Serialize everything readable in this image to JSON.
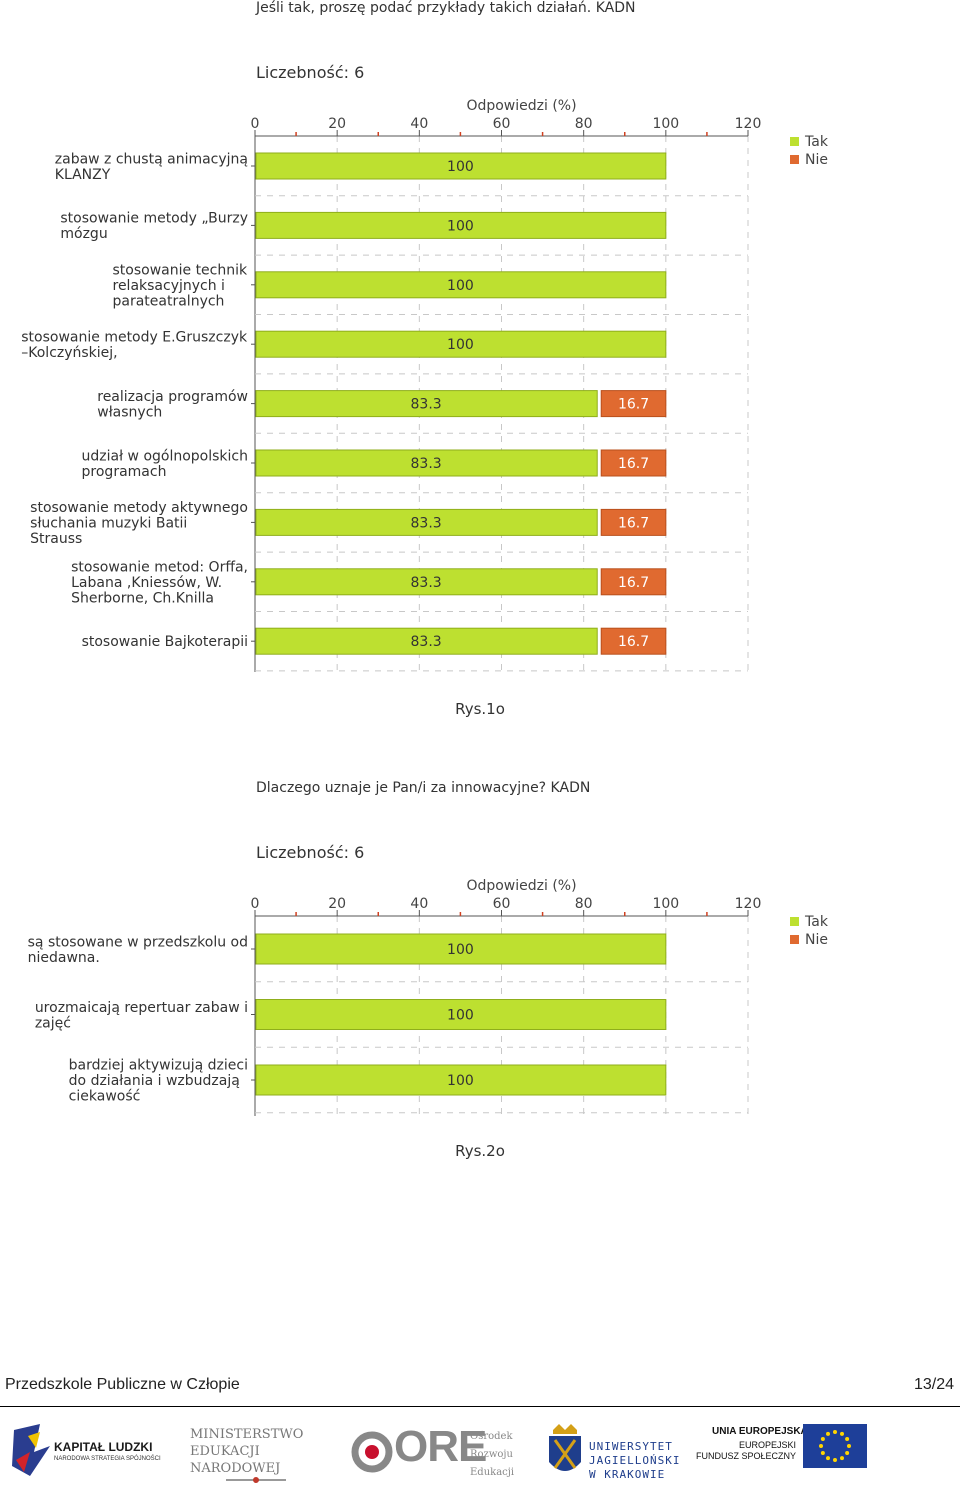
{
  "colors": {
    "tak": "#bde030",
    "tak_border": "#8fae1b",
    "nie": "#e06a30",
    "nie_border": "#b9501d",
    "grid": "#c8c8c8",
    "tick_red": "#d04020"
  },
  "chart_data": [
    {
      "type": "bar",
      "orientation": "horizontal",
      "stacked": true,
      "title": "Jeśli tak, proszę podać przykłady takich działań. KADN",
      "count_label": "Liczebność: 6",
      "xlabel": "Odpowiedzi (%)",
      "xlim": [
        0,
        120
      ],
      "xticks": [
        "0",
        "20",
        "40",
        "60",
        "80",
        "100",
        "120"
      ],
      "grid": true,
      "legend_position": "top-right",
      "categories": [
        [
          "zabaw z chustą animacyjną",
          "KLANZY"
        ],
        [
          "stosowanie metody „Burzy",
          "mózgu"
        ],
        [
          "stosowanie technik",
          "relaksacyjnych i",
          "parateatralnych"
        ],
        [
          "stosowanie metody E.Gruszczyk",
          "–Kolczyńskiej,"
        ],
        [
          "realizacja programów",
          "własnych"
        ],
        [
          "udział w ogólnopolskich",
          "programach"
        ],
        [
          "stosowanie metody aktywnego",
          "słuchania muzyki Batii",
          "Strauss"
        ],
        [
          "stosowanie metod: Orffa,",
          "Labana ,Kniessów, W.",
          "Sherborne, Ch.Knilla"
        ],
        [
          "stosowanie Bajkoterapii"
        ]
      ],
      "series": [
        {
          "name": "Tak",
          "values": [
            100,
            100,
            100,
            100,
            83.3,
            83.3,
            83.3,
            83.3,
            83.3
          ],
          "labels": [
            "100",
            "100",
            "100",
            "100",
            "83.3",
            "83.3",
            "83.3",
            "83.3",
            "83.3"
          ]
        },
        {
          "name": "Nie",
          "values": [
            0,
            0,
            0,
            0,
            16.7,
            16.7,
            16.7,
            16.7,
            16.7
          ],
          "labels": [
            "",
            "",
            "",
            "",
            "16.7",
            "16.7",
            "16.7",
            "16.7",
            "16.7"
          ]
        }
      ],
      "caption": "Rys.1o"
    },
    {
      "type": "bar",
      "orientation": "horizontal",
      "stacked": true,
      "title": "Dlaczego uznaje je Pan/i za innowacyjne? KADN",
      "count_label": "Liczebność: 6",
      "xlabel": "Odpowiedzi (%)",
      "xlim": [
        0,
        120
      ],
      "xticks": [
        "0",
        "20",
        "40",
        "60",
        "80",
        "100",
        "120"
      ],
      "grid": true,
      "legend_position": "top-right",
      "categories": [
        [
          "są stosowane w przedszkolu od",
          "niedawna."
        ],
        [
          "urozmaicają repertuar zabaw i",
          "zajęć"
        ],
        [
          "bardziej aktywizują dzieci",
          "do działania i wzbudzają",
          "ciekawość"
        ]
      ],
      "series": [
        {
          "name": "Tak",
          "values": [
            100,
            100,
            100
          ],
          "labels": [
            "100",
            "100",
            "100"
          ]
        },
        {
          "name": "Nie",
          "values": [
            0,
            0,
            0
          ],
          "labels": [
            "",
            "",
            ""
          ]
        }
      ],
      "caption": "Rys.2o"
    }
  ],
  "footer": {
    "school": "Przedszkole Publiczne w Człopie",
    "page": "13/24"
  },
  "logos": {
    "kapital": {
      "title": "KAPITAŁ LUDZKI",
      "subtitle": "NARODOWA STRATEGIA SPÓJNOŚCI"
    },
    "men": {
      "line1": "MINISTERSTWO",
      "line2": "EDUKACJI",
      "line3": "NARODOWEJ"
    },
    "ore": {
      "mark": "ORE",
      "line1": "Ośrodek",
      "line2": "Rozwoju",
      "line3": "Edukacji"
    },
    "uj": {
      "line1": "UNIWERSYTET",
      "line2": "JAGIELLOŃSKI",
      "line3": "W KRAKOWIE"
    },
    "ue": {
      "line1": "UNIA EUROPEJSKA",
      "line2": "EUROPEJSKI",
      "line3": "FUNDUSZ SPOŁECZNY"
    }
  }
}
